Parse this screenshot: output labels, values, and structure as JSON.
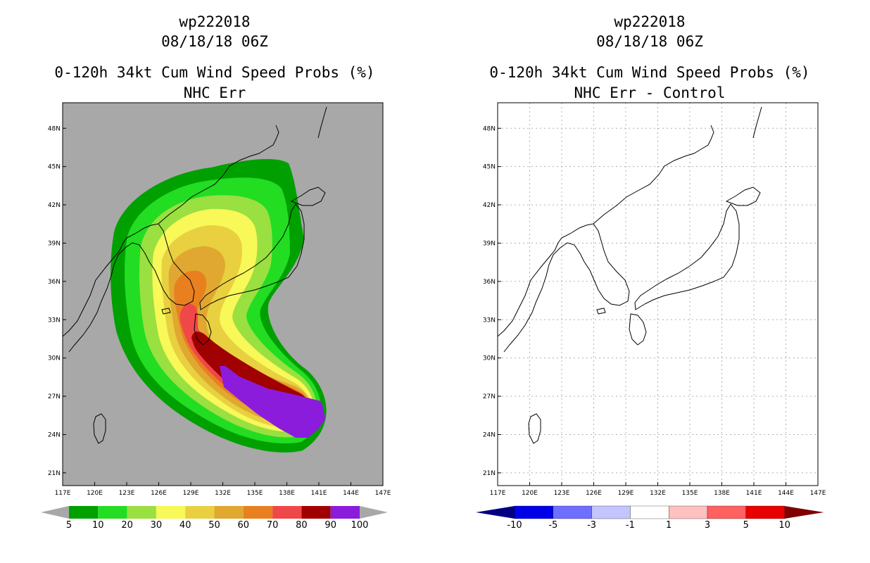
{
  "colors": {
    "land_bg": "#a8a8a8",
    "prob": [
      "#00a000",
      "#22dd22",
      "#99e040",
      "#f8f858",
      "#e8d040",
      "#e0a830",
      "#e88020",
      "#f04848",
      "#a00000",
      "#8c1cdc"
    ],
    "diff": [
      "#0000e8",
      "#6e6eff",
      "#c4c4ff",
      "#ffffff",
      "#ffc0c0",
      "#ff6060",
      "#e80000"
    ],
    "diff_end_low": "#000080",
    "diff_end_high": "#800000"
  },
  "left_panel": {
    "storm": "wp222018",
    "datetime": "08/18/18 06Z",
    "title": "0-120h 34kt Cum Wind Speed Probs (%)",
    "subtitle": "NHC Err",
    "colorbar_labels": [
      "5",
      "10",
      "20",
      "30",
      "40",
      "50",
      "60",
      "70",
      "80",
      "90",
      "100"
    ]
  },
  "right_panel": {
    "storm": "wp222018",
    "datetime": "08/18/18 06Z",
    "title": "0-120h 34kt Cum Wind Speed Probs (%)",
    "subtitle": "NHC Err - Control",
    "colorbar_labels": [
      "-10",
      "-5",
      "-3",
      "-1",
      "1",
      "3",
      "5",
      "10"
    ]
  },
  "axes": {
    "lon_labels": [
      "117E",
      "120E",
      "123E",
      "126E",
      "129E",
      "132E",
      "135E",
      "138E",
      "141E",
      "144E",
      "147E"
    ],
    "lat_labels": [
      "48N",
      "45N",
      "42N",
      "39N",
      "36N",
      "33N",
      "30N",
      "27N",
      "24N",
      "21N"
    ]
  }
}
